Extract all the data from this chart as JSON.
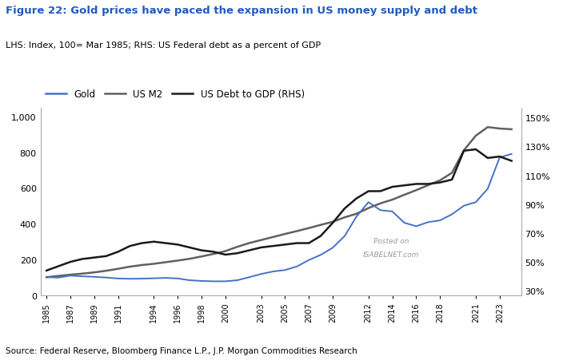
{
  "title": "Figure 22: Gold prices have paced the expansion in US money supply and debt",
  "subtitle": "LHS: Index, 100= Mar 1985; RHS: US Federal debt as a percent of GDP",
  "source": "Source: Federal Reserve, Bloomberg Finance L.P., J.P. Morgan Commodities Research",
  "title_color": "#1F5BC4",
  "subtitle_color": "#000000",
  "legend_labels": [
    "Gold",
    "US M2",
    "US Debt to GDP (RHS)"
  ],
  "legend_colors": [
    "#4472C4",
    "#606060",
    "#1a1a1a"
  ],
  "x_labels": [
    "1985",
    "1987",
    "1989",
    "1991",
    "1994",
    "1996",
    "1998",
    "2000",
    "2003",
    "2005",
    "2007",
    "2009",
    "2012",
    "2014",
    "2016",
    "2018",
    "2021",
    "2023"
  ],
  "ylim_left": [
    0,
    1050
  ],
  "ylim_right": [
    27,
    157
  ],
  "yticks_left": [
    0,
    200,
    400,
    600,
    800,
    1000
  ],
  "yticks_right": [
    30,
    50,
    70,
    90,
    110,
    130,
    150
  ],
  "years": [
    1985,
    1986,
    1987,
    1988,
    1989,
    1990,
    1991,
    1992,
    1993,
    1994,
    1995,
    1996,
    1997,
    1998,
    1999,
    2000,
    2001,
    2002,
    2003,
    2004,
    2005,
    2006,
    2007,
    2008,
    2009,
    2010,
    2011,
    2012,
    2013,
    2014,
    2015,
    2016,
    2017,
    2018,
    2019,
    2020,
    2021,
    2022,
    2023,
    2024
  ],
  "gold": [
    100,
    98,
    109,
    105,
    102,
    98,
    93,
    91,
    92,
    94,
    96,
    93,
    83,
    79,
    77,
    77,
    83,
    100,
    118,
    132,
    140,
    160,
    196,
    225,
    265,
    330,
    440,
    520,
    475,
    468,
    405,
    385,
    408,
    418,
    452,
    500,
    520,
    595,
    770,
    790
  ],
  "m2": [
    100,
    107,
    114,
    120,
    127,
    136,
    147,
    159,
    168,
    175,
    184,
    193,
    203,
    216,
    230,
    246,
    270,
    291,
    308,
    325,
    342,
    358,
    375,
    393,
    410,
    435,
    455,
    487,
    513,
    534,
    561,
    587,
    615,
    642,
    684,
    810,
    892,
    940,
    932,
    928
  ],
  "debt_gdp": [
    44,
    47,
    50,
    52,
    53,
    54,
    57,
    61,
    63,
    64,
    63,
    62,
    60,
    58,
    57,
    55,
    56,
    58,
    60,
    61,
    62,
    63,
    63,
    68,
    77,
    87,
    94,
    99,
    99,
    102,
    103,
    104,
    104,
    105,
    107,
    127,
    128,
    122,
    123,
    120
  ],
  "watermark_line1": "Posted on",
  "watermark_line2": "ISABELNET.com"
}
